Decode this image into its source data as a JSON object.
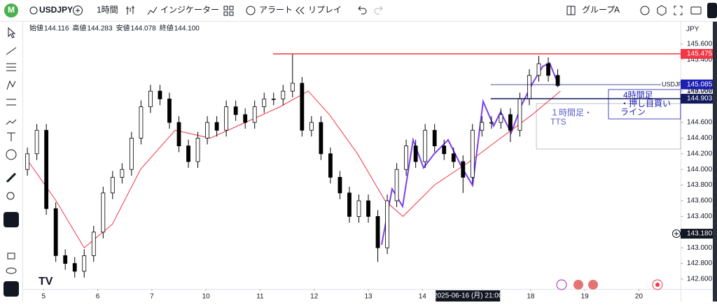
{
  "toolbar": {
    "avatar": "M",
    "symbol": "USDJPY",
    "interval": "1時間",
    "indicators": "インジケーター",
    "alert": "アラート",
    "replay": "リプレイ",
    "group": "グループ",
    "group_letter": "A"
  },
  "chart_data": {
    "type": "candlestick",
    "currency": "JPY",
    "legend": [
      {
        "label": "始値",
        "value": "144.116"
      },
      {
        "label": "高値",
        "value": "144.283"
      },
      {
        "label": "安値",
        "value": "144.078"
      },
      {
        "label": "終値",
        "value": "144.100"
      }
    ],
    "up_color": "#ffffff",
    "down_color": "#000000",
    "wick_color": "#000000",
    "x": [
      -0.3,
      -0.125,
      0.05,
      0.225,
      0.4,
      0.575,
      0.75,
      0.925,
      1.1,
      1.275,
      1.45,
      1.625,
      1.8,
      1.975,
      2.15,
      2.325,
      2.5,
      2.675,
      2.85,
      3.025,
      3.2,
      3.375,
      3.55,
      3.725,
      3.9,
      4.075,
      4.25,
      4.425,
      4.6,
      4.775,
      4.95,
      5.125,
      5.3,
      5.475,
      5.65,
      5.825,
      6,
      6.175,
      6.35,
      6.525,
      6.7,
      6.875,
      7.05,
      7.225,
      7.4,
      7.575,
      7.75,
      7.925,
      8.1,
      8.275,
      8.45,
      8.625,
      8.8,
      8.975,
      9.15,
      9.325,
      9.5
    ],
    "candles": [
      [
        144.0,
        144.28,
        143.92,
        144.2
      ],
      [
        144.2,
        144.58,
        144.12,
        144.5
      ],
      [
        144.5,
        144.58,
        143.42,
        143.5
      ],
      [
        143.5,
        143.58,
        142.82,
        142.9
      ],
      [
        142.9,
        142.98,
        142.72,
        142.8
      ],
      [
        142.8,
        142.88,
        142.62,
        142.7
      ],
      [
        142.7,
        142.98,
        142.62,
        142.9
      ],
      [
        142.9,
        143.28,
        142.82,
        143.2
      ],
      [
        143.2,
        143.78,
        143.12,
        143.7
      ],
      [
        143.7,
        143.98,
        143.62,
        143.9
      ],
      [
        143.9,
        144.08,
        143.82,
        144.0
      ],
      [
        144.0,
        144.48,
        143.92,
        144.4
      ],
      [
        144.4,
        144.88,
        144.32,
        144.8
      ],
      [
        144.8,
        145.08,
        144.72,
        145.0
      ],
      [
        145.0,
        145.08,
        144.82,
        144.9
      ],
      [
        144.9,
        144.98,
        144.52,
        144.6
      ],
      [
        144.6,
        144.68,
        144.22,
        144.3
      ],
      [
        144.3,
        144.38,
        144.02,
        144.1
      ],
      [
        144.1,
        144.48,
        144.02,
        144.4
      ],
      [
        144.4,
        144.68,
        144.32,
        144.6
      ],
      [
        144.6,
        144.68,
        144.42,
        144.5
      ],
      [
        144.5,
        144.88,
        144.42,
        144.8
      ],
      [
        144.8,
        144.88,
        144.62,
        144.7
      ],
      [
        144.7,
        144.78,
        144.52,
        144.6
      ],
      [
        144.6,
        144.88,
        144.52,
        144.8
      ],
      [
        144.8,
        144.98,
        144.72,
        144.9
      ],
      [
        144.9,
        144.98,
        144.82,
        144.9
      ],
      [
        144.9,
        145.08,
        144.82,
        145.0
      ],
      [
        145.0,
        145.48,
        144.92,
        145.1
      ],
      [
        145.1,
        145.18,
        144.42,
        144.5
      ],
      [
        144.5,
        144.68,
        144.42,
        144.6
      ],
      [
        144.6,
        144.68,
        144.12,
        144.2
      ],
      [
        144.2,
        144.28,
        143.82,
        143.9
      ],
      [
        143.9,
        143.98,
        143.62,
        143.7
      ],
      [
        143.7,
        143.78,
        143.32,
        143.4
      ],
      [
        143.4,
        143.68,
        143.32,
        143.6
      ],
      [
        143.6,
        143.68,
        143.32,
        143.4
      ],
      [
        143.4,
        143.48,
        142.82,
        143.0
      ],
      [
        143.0,
        143.68,
        142.92,
        143.6
      ],
      [
        143.6,
        144.08,
        143.52,
        144.0
      ],
      [
        144.0,
        144.38,
        143.92,
        144.3
      ],
      [
        144.3,
        144.38,
        144.02,
        144.1
      ],
      [
        144.1,
        144.58,
        144.02,
        144.5
      ],
      [
        144.5,
        144.58,
        144.22,
        144.3
      ],
      [
        144.3,
        144.38,
        144.12,
        144.2
      ],
      [
        144.2,
        144.28,
        144.02,
        144.1
      ],
      [
        144.1,
        144.18,
        143.7,
        143.9
      ],
      [
        143.9,
        144.58,
        143.82,
        144.5
      ],
      [
        144.5,
        144.68,
        144.42,
        144.6
      ],
      [
        144.6,
        144.68,
        144.52,
        144.6
      ],
      [
        144.6,
        144.78,
        144.52,
        144.7
      ],
      [
        144.7,
        144.78,
        144.35,
        144.5
      ],
      [
        144.5,
        144.98,
        144.42,
        144.9
      ],
      [
        144.9,
        145.28,
        144.82,
        145.2
      ],
      [
        145.2,
        145.45,
        145.12,
        145.35
      ],
      [
        145.35,
        145.43,
        145.12,
        145.2
      ],
      [
        145.2,
        145.28,
        145.05,
        145.07
      ]
    ],
    "ma": {
      "color": "#f23645",
      "x": [
        -0.28,
        0.23,
        0.75,
        1.27,
        1.79,
        2.43,
        3.08,
        3.73,
        4.37,
        4.89,
        5.28,
        5.8,
        6.31,
        6.64,
        7.22,
        7.87,
        8.25,
        9.03,
        9.55
      ],
      "values": [
        144.1,
        143.6,
        143.0,
        143.3,
        144.0,
        144.5,
        144.4,
        144.6,
        144.8,
        145.0,
        144.7,
        144.2,
        143.6,
        143.4,
        143.8,
        144.1,
        144.3,
        144.7,
        145.0
      ]
    },
    "xlim": [
      -0.34,
      11.77
    ],
    "xticks": [
      {
        "value": 0,
        "label": "5"
      },
      {
        "value": 1,
        "label": "6"
      },
      {
        "value": 2,
        "label": "7"
      },
      {
        "value": 3,
        "label": "10"
      },
      {
        "value": 4,
        "label": "11"
      },
      {
        "value": 5,
        "label": "12"
      },
      {
        "value": 6,
        "label": "13"
      },
      {
        "value": 7,
        "label": "14"
      },
      {
        "value": 9,
        "label": "18"
      },
      {
        "value": 10,
        "label": "19"
      },
      {
        "value": 11,
        "label": "20"
      }
    ],
    "crosshair": {
      "x": 7.84,
      "label": "2025-06-16 (月) 21:00"
    },
    "ylim": [
      142.475,
      145.877
    ],
    "yticks": [
      {
        "value": 145.6,
        "label": "145.600"
      },
      {
        "value": 145.4,
        "label": "145.400"
      },
      {
        "value": 145.0,
        "label": "145.000"
      },
      {
        "value": 144.6,
        "label": "144.600"
      },
      {
        "value": 144.4,
        "label": "144.400"
      },
      {
        "value": 144.2,
        "label": "144.200"
      },
      {
        "value": 144.0,
        "label": "144.000"
      },
      {
        "value": 143.8,
        "label": "143.800"
      },
      {
        "value": 143.6,
        "label": "143.600"
      },
      {
        "value": 143.4,
        "label": "143.400"
      },
      {
        "value": 143.0,
        "label": "143.000"
      },
      {
        "value": 142.8,
        "label": "142.800"
      },
      {
        "value": 142.6,
        "label": "142.600"
      }
    ],
    "price_lines": [
      {
        "value": 145.475,
        "label": "145.475",
        "color": "#f23645",
        "from": 4.24
      },
      {
        "value": 144.903,
        "label": "144.903",
        "color": "#131a5c",
        "from": 8.26
      }
    ],
    "price_labels": [
      {
        "value": 145.085,
        "label": "145.085",
        "color": "#1c1fb3"
      },
      {
        "value": 143.18,
        "label": "143.180",
        "color": "#131722"
      }
    ],
    "symbol_line": {
      "value": 145.082,
      "label": "145.082",
      "name": "USDJPY",
      "from": 8.26
    },
    "annotations": [
      {
        "lines": [
          "4時間足",
          "・押し目買い",
          "ライン"
        ]
      },
      {
        "lines": [
          "１時間足・",
          "TTS"
        ]
      }
    ]
  }
}
